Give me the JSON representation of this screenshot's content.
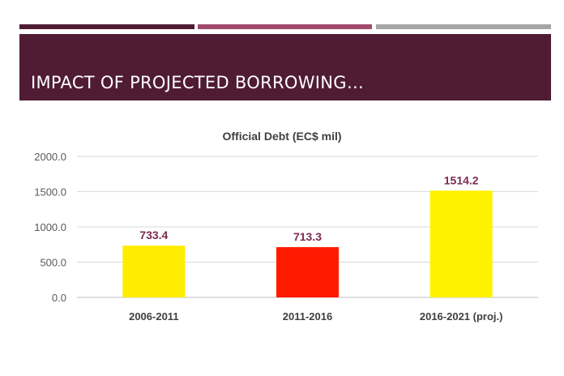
{
  "slide": {
    "title": "IMPACT OF PROJECTED BORROWING…",
    "accent_bars": [
      {
        "color": "#4f1c33"
      },
      {
        "color": "#a14a6c"
      },
      {
        "color": "#a6a6a6"
      }
    ]
  },
  "chart_data": {
    "type": "bar",
    "title": "Official Debt (EC$ mil)",
    "xlabel": "",
    "ylabel": "",
    "categories": [
      "2006-2011",
      "2011-2016",
      "2016-2021 (proj.)"
    ],
    "values": [
      733.4,
      713.3,
      1514.2
    ],
    "data_labels": [
      "733.4",
      "713.3",
      "1514.2"
    ],
    "bar_colors": [
      "#ffed00",
      "#ff1a00",
      "#fff200"
    ],
    "data_label_color": "#7b2c4e",
    "ylim": [
      0,
      2000
    ],
    "yticks": [
      0,
      500,
      1000,
      1500,
      2000
    ],
    "ytick_labels": [
      "0.0",
      "500.0",
      "1000.0",
      "1500.0",
      "2000.0"
    ],
    "grid": true,
    "legend": "none"
  }
}
